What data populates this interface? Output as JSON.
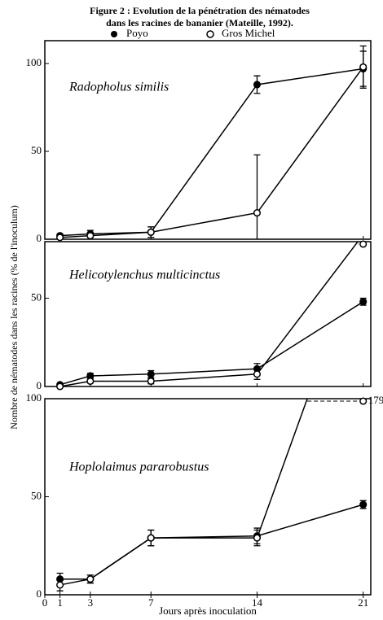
{
  "chart_data": [
    {
      "type": "line",
      "title": [
        "Figure 2 : Evolution de la pénétration des nématodes",
        "dans les racines de bananier (Mateille, 1992)."
      ],
      "y_label": "Nombre de nématodes dans les racines (% de l'inoculum)",
      "annotation": "Radopholus similis",
      "x": [
        1,
        3,
        7,
        14,
        21
      ],
      "xlim": [
        0,
        21.5
      ],
      "ylim": [
        0,
        113
      ],
      "yticks": [
        0,
        50,
        100
      ],
      "series": [
        {
          "name": "Poyo",
          "color": "#000000",
          "marker": "filled",
          "values": [
            2,
            3,
            4,
            88,
            97
          ],
          "errors": [
            1,
            2,
            3,
            5,
            10
          ]
        },
        {
          "name": "Gros Michel",
          "color": "#000000",
          "marker": "open",
          "values": [
            1,
            2,
            4,
            15,
            98
          ],
          "errors": [
            1,
            2,
            3,
            33,
            12
          ]
        }
      ]
    },
    {
      "type": "line",
      "annotation": "Helicotylenchus multicinctus",
      "x": [
        1,
        3,
        7,
        14,
        21
      ],
      "xlim": [
        0,
        21.5
      ],
      "ylim": [
        0,
        82
      ],
      "yticks": [
        0,
        50
      ],
      "series": [
        {
          "name": "Poyo",
          "color": "#000000",
          "marker": "filled",
          "values": [
            1,
            6,
            7,
            10,
            48
          ],
          "errors": [
            0.5,
            1.5,
            2,
            3,
            2
          ]
        },
        {
          "name": "Gros Michel",
          "color": "#000000",
          "marker": "open",
          "values": [
            0,
            3,
            3,
            7,
            86
          ],
          "errors": [
            0.5,
            1,
            1.5,
            3,
            4
          ]
        }
      ]
    },
    {
      "type": "line",
      "annotation": "Hoplolaimus pararobustus",
      "x": [
        1,
        3,
        7,
        14,
        21
      ],
      "xlim": [
        0,
        21.5
      ],
      "ylim": [
        0,
        100
      ],
      "yticks": [
        0,
        50,
        100
      ],
      "xticks": [
        0,
        1,
        3,
        7,
        14,
        21
      ],
      "x_label": "Jours après inoculation",
      "series": [
        {
          "name": "Poyo",
          "color": "#000000",
          "marker": "filled",
          "values": [
            8,
            8,
            29,
            30,
            46
          ],
          "errors": [
            3,
            2,
            4,
            4,
            2
          ]
        },
        {
          "name": "Gros Michel",
          "color": "#000000",
          "marker": "open",
          "values": [
            5,
            8,
            29,
            29,
            179
          ],
          "errors": [
            3,
            2,
            4,
            4,
            null
          ],
          "value_labels": [
            null,
            null,
            null,
            null,
            "179"
          ]
        }
      ]
    }
  ]
}
